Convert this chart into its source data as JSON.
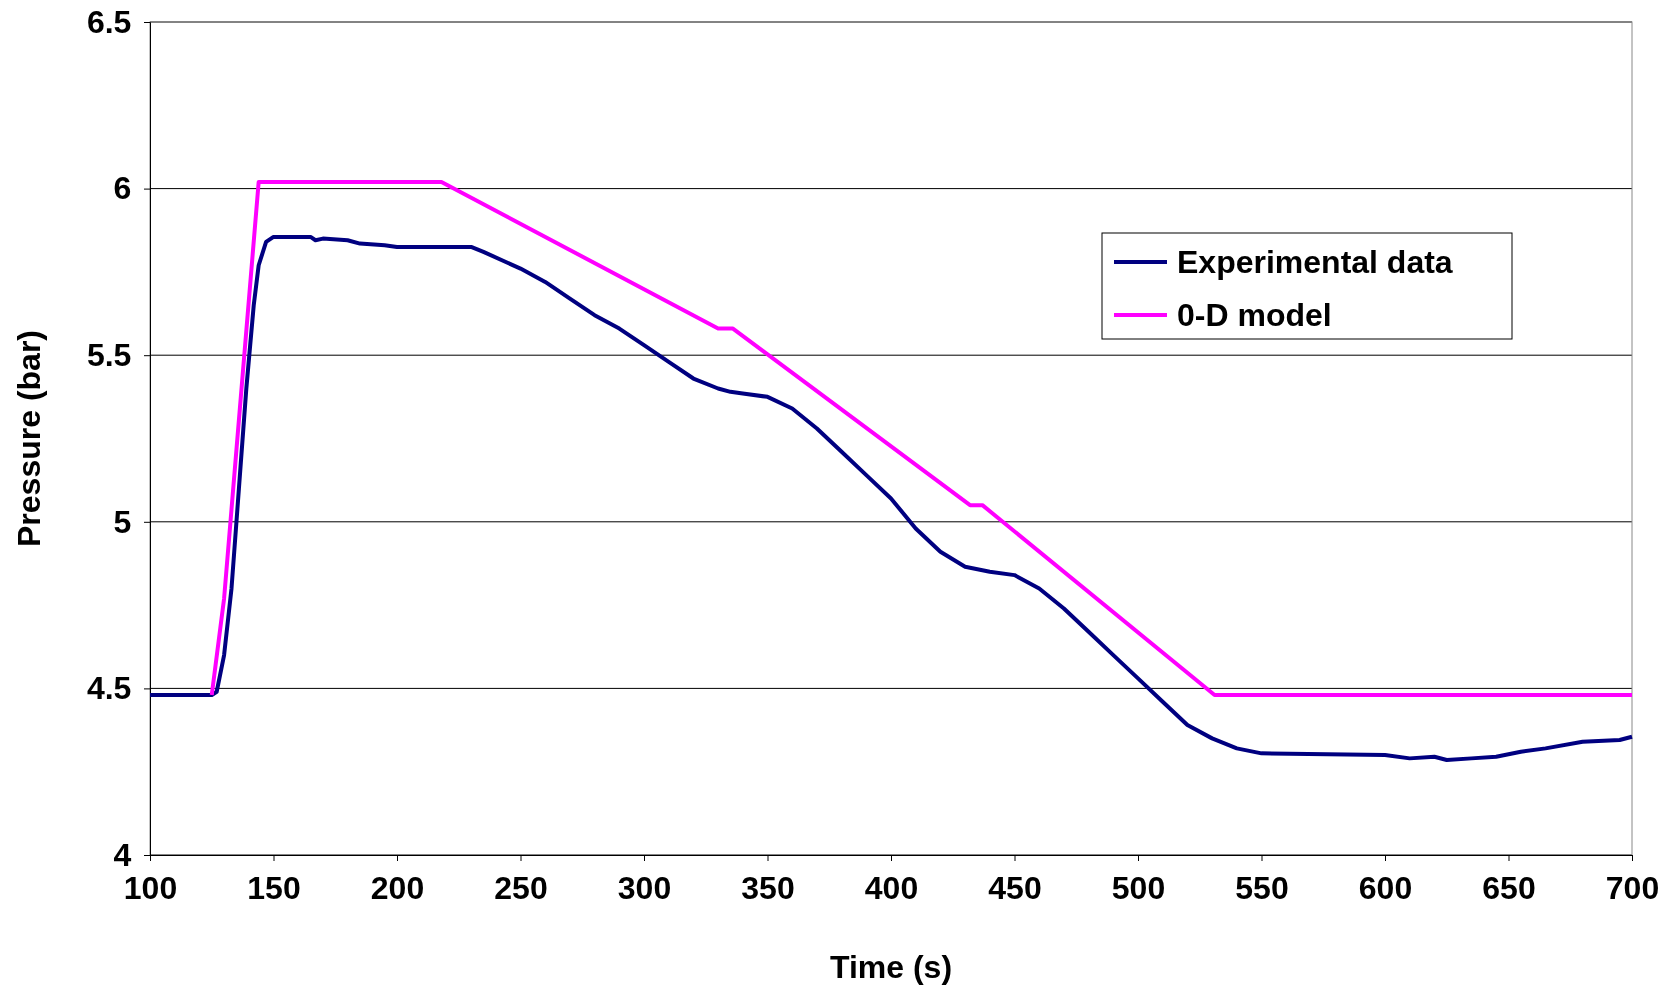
{
  "chart_data": {
    "type": "line",
    "xlabel": "Time (s)",
    "ylabel": "Pressure (bar)",
    "xlim": [
      100,
      700
    ],
    "xticks": [
      100,
      150,
      200,
      250,
      300,
      350,
      400,
      450,
      500,
      550,
      600,
      650,
      700
    ],
    "ylim": [
      4,
      6.5
    ],
    "yticks": [
      4,
      4.5,
      5,
      5.5,
      6,
      6.5
    ],
    "grid": "y",
    "legend": "top right",
    "marker": "none",
    "series": [
      {
        "name": "Experimental data",
        "color": "#000080",
        "x": [
          100,
          125,
          127,
          130,
          133,
          136,
          139,
          142,
          144,
          147,
          150,
          165,
          167,
          170,
          180,
          185,
          195,
          200,
          230,
          235,
          250,
          260,
          270,
          280,
          290,
          300,
          310,
          320,
          330,
          335,
          340,
          350,
          360,
          370,
          380,
          390,
          400,
          410,
          420,
          430,
          440,
          450,
          460,
          470,
          480,
          490,
          500,
          510,
          520,
          530,
          540,
          550,
          600,
          610,
          620,
          625,
          635,
          645,
          655,
          665,
          680,
          695,
          700
        ],
        "values": [
          4.48,
          4.48,
          4.49,
          4.6,
          4.8,
          5.1,
          5.4,
          5.65,
          5.77,
          5.84,
          5.855,
          5.855,
          5.845,
          5.85,
          5.845,
          5.835,
          5.83,
          5.825,
          5.825,
          5.81,
          5.76,
          5.72,
          5.67,
          5.62,
          5.58,
          5.53,
          5.48,
          5.43,
          5.4,
          5.39,
          5.385,
          5.375,
          5.34,
          5.28,
          5.21,
          5.14,
          5.07,
          4.98,
          4.91,
          4.865,
          4.85,
          4.84,
          4.8,
          4.74,
          4.67,
          4.6,
          4.53,
          4.46,
          4.39,
          4.35,
          4.32,
          4.305,
          4.3,
          4.29,
          4.295,
          4.285,
          4.29,
          4.295,
          4.31,
          4.32,
          4.34,
          4.345,
          4.355
        ]
      },
      {
        "name": "0-D model",
        "color": "#ff00ff",
        "x": [
          125,
          130,
          144,
          218,
          330,
          336,
          432,
          437,
          531,
          700
        ],
        "values": [
          4.48,
          4.77,
          6.02,
          6.02,
          5.58,
          5.58,
          5.05,
          5.05,
          4.48,
          4.48
        ]
      }
    ]
  }
}
